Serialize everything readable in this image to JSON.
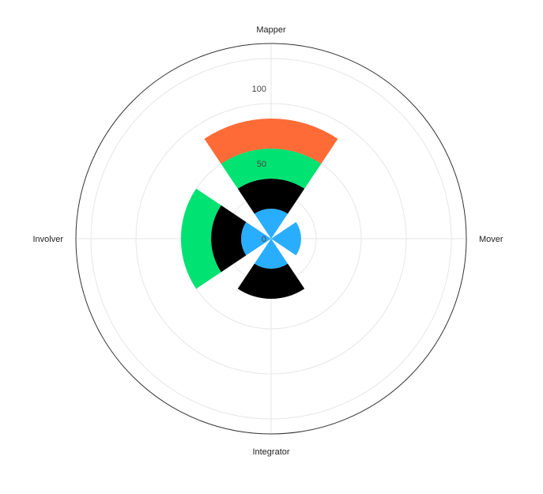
{
  "chart_data": {
    "type": "bar",
    "subtype": "polar-stacked",
    "categories": [
      "Mapper",
      "Mover",
      "Integrator",
      "Involver"
    ],
    "series": [
      {
        "color": "#29ADFF",
        "values": [
          20,
          20,
          20,
          20
        ]
      },
      {
        "color": "#000000",
        "values": [
          20,
          0,
          20,
          20
        ]
      },
      {
        "color": "#00E272",
        "values": [
          20,
          0,
          0,
          20
        ]
      },
      {
        "color": "#FF6B37",
        "values": [
          20,
          0,
          0,
          0
        ]
      }
    ],
    "radial_ticks": [
      "0",
      "50",
      "100"
    ],
    "radial_range": [
      0,
      130
    ],
    "grid": true,
    "legend": "none"
  }
}
